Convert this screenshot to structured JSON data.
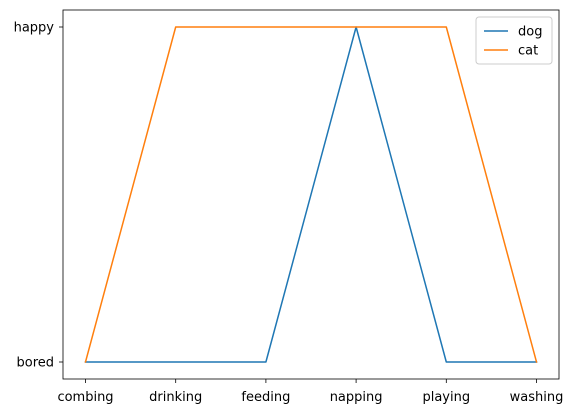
{
  "chart_data": {
    "type": "line",
    "title": "",
    "xlabel": "",
    "ylabel": "",
    "categories": [
      "combing",
      "drinking",
      "feeding",
      "napping",
      "playing",
      "washing"
    ],
    "y_categories": [
      "bored",
      "happy"
    ],
    "series": [
      {
        "name": "dog",
        "color": "#1f77b4",
        "values": [
          "bored",
          "bored",
          "bored",
          "happy",
          "bored",
          "bored"
        ]
      },
      {
        "name": "cat",
        "color": "#ff7f0e",
        "values": [
          "bored",
          "happy",
          "happy",
          "happy",
          "happy",
          "bored"
        ]
      }
    ],
    "grid": false,
    "legend_position": "top-right"
  }
}
